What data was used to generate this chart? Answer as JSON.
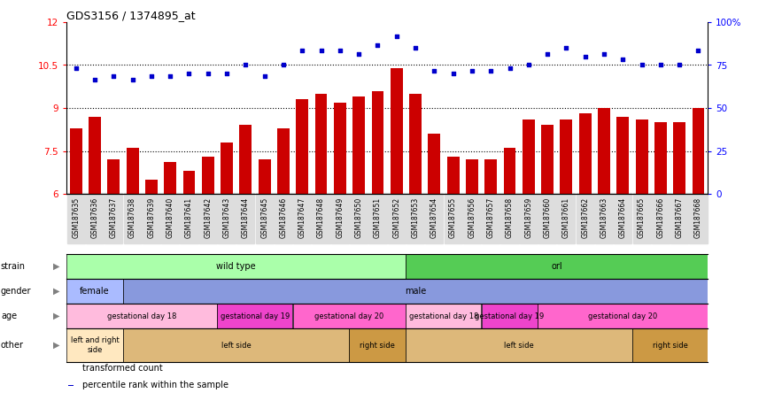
{
  "title": "GDS3156 / 1374895_at",
  "samples": [
    "GSM187635",
    "GSM187636",
    "GSM187637",
    "GSM187638",
    "GSM187639",
    "GSM187640",
    "GSM187641",
    "GSM187642",
    "GSM187643",
    "GSM187644",
    "GSM187645",
    "GSM187646",
    "GSM187647",
    "GSM187648",
    "GSM187649",
    "GSM187650",
    "GSM187651",
    "GSM187652",
    "GSM187653",
    "GSM187654",
    "GSM187655",
    "GSM187656",
    "GSM187657",
    "GSM187658",
    "GSM187659",
    "GSM187660",
    "GSM187661",
    "GSM187662",
    "GSM187663",
    "GSM187664",
    "GSM187665",
    "GSM187666",
    "GSM187667",
    "GSM187668"
  ],
  "bar_values": [
    8.3,
    8.7,
    7.2,
    7.6,
    6.5,
    7.1,
    6.8,
    7.3,
    7.8,
    8.4,
    7.2,
    8.3,
    9.3,
    9.5,
    9.2,
    9.4,
    9.6,
    10.4,
    9.5,
    8.1,
    7.3,
    7.2,
    7.2,
    7.6,
    8.6,
    8.4,
    8.6,
    8.8,
    9.0,
    8.7,
    8.6,
    8.5,
    8.5,
    9.0
  ],
  "dot_values": [
    10.4,
    10.0,
    10.1,
    10.0,
    10.1,
    10.1,
    10.2,
    10.2,
    10.2,
    10.5,
    10.1,
    10.5,
    11.0,
    11.0,
    11.0,
    10.9,
    11.2,
    11.5,
    11.1,
    10.3,
    10.2,
    10.3,
    10.3,
    10.4,
    10.5,
    10.9,
    11.1,
    10.8,
    10.9,
    10.7,
    10.5,
    10.5,
    10.5,
    11.0
  ],
  "bar_color": "#cc0000",
  "dot_color": "#0000cc",
  "ylim": [
    6,
    12
  ],
  "yticks": [
    6,
    7.5,
    9,
    10.5,
    12
  ],
  "y2ticks_vals": [
    0,
    25,
    50,
    75,
    100
  ],
  "y2ticks_labels": [
    "0",
    "25",
    "50",
    "75",
    "100%"
  ],
  "dotted_lines": [
    7.5,
    9.0,
    10.5
  ],
  "strain_spans": [
    {
      "label": "wild type",
      "start": 0,
      "end": 18,
      "color": "#aaffaa"
    },
    {
      "label": "orl",
      "start": 18,
      "end": 34,
      "color": "#55cc55"
    }
  ],
  "gender_spans": [
    {
      "label": "female",
      "start": 0,
      "end": 3,
      "color": "#aabbff"
    },
    {
      "label": "male",
      "start": 3,
      "end": 34,
      "color": "#8899dd"
    }
  ],
  "age_spans": [
    {
      "label": "gestational day 18",
      "start": 0,
      "end": 8,
      "color": "#ffbbdd"
    },
    {
      "label": "gestational day 19",
      "start": 8,
      "end": 12,
      "color": "#ee44cc"
    },
    {
      "label": "gestational day 20",
      "start": 12,
      "end": 18,
      "color": "#ff66cc"
    },
    {
      "label": "gestational day 18",
      "start": 18,
      "end": 22,
      "color": "#ffbbdd"
    },
    {
      "label": "gestational day 19",
      "start": 22,
      "end": 25,
      "color": "#ee44cc"
    },
    {
      "label": "gestational day 20",
      "start": 25,
      "end": 34,
      "color": "#ff66cc"
    }
  ],
  "other_spans": [
    {
      "label": "left and right\nside",
      "start": 0,
      "end": 3,
      "color": "#ffe8c0"
    },
    {
      "label": "left side",
      "start": 3,
      "end": 15,
      "color": "#ddb87a"
    },
    {
      "label": "right side",
      "start": 15,
      "end": 18,
      "color": "#cc9944"
    },
    {
      "label": "left side",
      "start": 18,
      "end": 30,
      "color": "#ddb87a"
    },
    {
      "label": "right side",
      "start": 30,
      "end": 34,
      "color": "#cc9944"
    }
  ],
  "row_labels": [
    "strain",
    "gender",
    "age",
    "other"
  ],
  "legend_items": [
    {
      "color": "#cc0000",
      "label": "transformed count"
    },
    {
      "color": "#0000cc",
      "label": "percentile rank within the sample"
    }
  ]
}
